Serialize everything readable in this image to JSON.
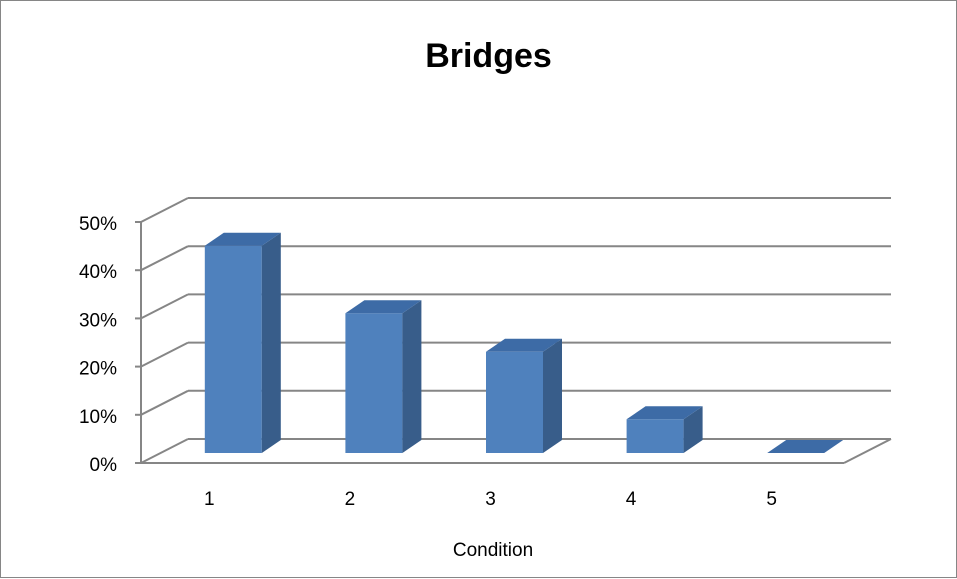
{
  "chart_data": {
    "type": "bar",
    "title": "Bridges",
    "xlabel": "Condition",
    "ylabel": "",
    "categories": [
      "1",
      "2",
      "3",
      "4",
      "5"
    ],
    "values": [
      43,
      29,
      21,
      7,
      0
    ],
    "ylim": [
      0,
      50
    ],
    "yticks": [
      "0%",
      "10%",
      "20%",
      "30%",
      "40%",
      "50%"
    ],
    "grid": true,
    "legend": "none",
    "style": "3d-column",
    "colors": {
      "bar_front": "#4F81BD",
      "bar_side": "#385D8A",
      "bar_top": "#3D6BA6",
      "gridline": "#868686"
    }
  }
}
